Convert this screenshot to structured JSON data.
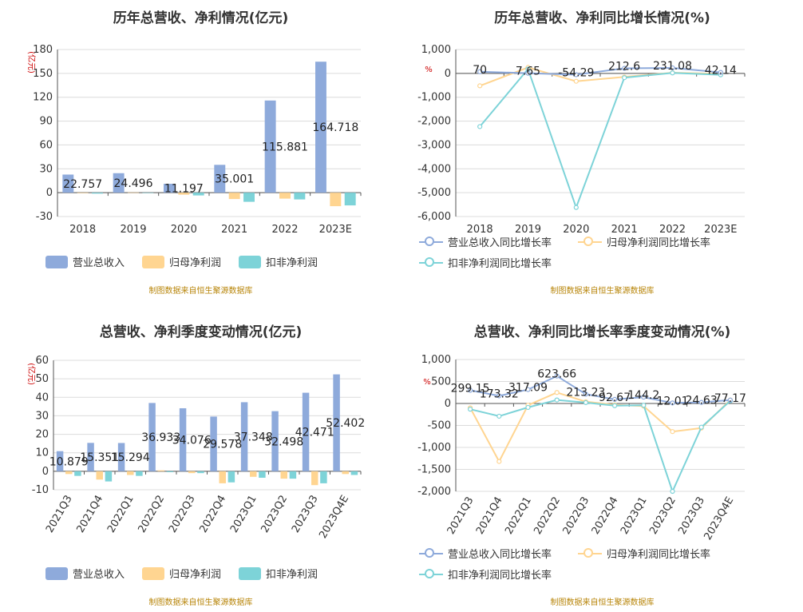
{
  "colors": {
    "rev": "#8eaadb",
    "net": "#ffd591",
    "deduct": "#7dd3d8",
    "axis_unit": "#cc0000",
    "source": "#b8860b"
  },
  "chart_data": [
    {
      "id": "annual_value",
      "type": "bar",
      "title": "历年总营收、净利情况(亿元)",
      "unit_label": "(亿元)",
      "categories": [
        "2018",
        "2019",
        "2020",
        "2021",
        "2022",
        "2023E"
      ],
      "series": [
        {
          "name": "营业总收入",
          "values": [
            22.757,
            24.496,
            11.197,
            35.001,
            115.881,
            164.718
          ],
          "labels": [
            "22.757",
            "24.496",
            "11.197",
            "35.001",
            "115.881",
            "164.718"
          ]
        },
        {
          "name": "归母净利润",
          "values": [
            -0.6,
            0.3,
            -2.5,
            -8.0,
            -7.5,
            -17.0
          ]
        },
        {
          "name": "扣非净利润",
          "values": [
            -1.2,
            -0.3,
            -3.5,
            -11.5,
            -8.5,
            -16.0
          ]
        }
      ],
      "ylim": [
        -30,
        180
      ],
      "yticks": [
        -30,
        0,
        30,
        60,
        90,
        120,
        150,
        180
      ],
      "legend_position": "bottom",
      "source": "制图数据来自恒生聚源数据库"
    },
    {
      "id": "annual_growth",
      "type": "line",
      "title": "历年总营收、净利同比增长情况(%)",
      "unit_label": "%",
      "categories": [
        "2018",
        "2019",
        "2020",
        "2021",
        "2022",
        "2023E"
      ],
      "series": [
        {
          "name": "营业总收入同比增长率",
          "values": [
            70,
            7.65,
            -54.29,
            212.6,
            231.08,
            42.14
          ],
          "labels": [
            "70",
            "7.65",
            "-54.29",
            "212.6",
            "231.08",
            "42.14"
          ]
        },
        {
          "name": "归母净利润同比增长率",
          "values": [
            -520,
            250,
            -330,
            -150,
            30,
            -20
          ]
        },
        {
          "name": "扣非净利润同比增长率",
          "values": [
            -2230,
            180,
            -5620,
            -180,
            20,
            -60
          ]
        }
      ],
      "ylim": [
        -6000,
        1000
      ],
      "yticks": [
        -6000,
        -5000,
        -4000,
        -3000,
        -2000,
        -1000,
        0,
        1000
      ],
      "legend_position": "bottom",
      "source": "制图数据来自恒生聚源数据库"
    },
    {
      "id": "quarter_value",
      "type": "bar",
      "title": "总营收、净利季度变动情况(亿元)",
      "unit_label": "(亿元)",
      "categories": [
        "2021Q3",
        "2021Q4",
        "2022Q1",
        "2022Q2",
        "2022Q3",
        "2022Q4",
        "2023Q1",
        "2023Q2",
        "2023Q3",
        "2023Q4E"
      ],
      "series": [
        {
          "name": "营业总收入",
          "values": [
            10.879,
            15.351,
            15.294,
            36.933,
            34.076,
            29.578,
            37.348,
            32.498,
            42.471,
            52.402
          ],
          "labels": [
            "10.879",
            "15.351",
            "15.294",
            "36.933",
            "34.076",
            "29.578",
            "37.348",
            "32.498",
            "42.471",
            "52.402"
          ]
        },
        {
          "name": "归母净利润",
          "values": [
            -1.5,
            -4.5,
            -2.0,
            0.5,
            -1.0,
            -6.5,
            -3.0,
            -4.0,
            -7.5,
            -1.5
          ]
        },
        {
          "name": "扣非净利润",
          "values": [
            -2.5,
            -5.5,
            -2.5,
            -0.5,
            -1.0,
            -6.0,
            -3.5,
            -4.0,
            -6.5,
            -2.0
          ]
        }
      ],
      "ylim": [
        -10,
        60
      ],
      "yticks": [
        -10,
        0,
        10,
        20,
        30,
        40,
        50,
        60
      ],
      "legend_position": "bottom",
      "source": "制图数据来自恒生聚源数据库"
    },
    {
      "id": "quarter_growth",
      "type": "line",
      "title": "总营收、净利同比增长率季度变动情况(%)",
      "unit_label": "%",
      "categories": [
        "2021Q3",
        "2021Q4",
        "2022Q1",
        "2022Q2",
        "2022Q3",
        "2022Q4",
        "2023Q1",
        "2023Q2",
        "2023Q3",
        "2023Q4E"
      ],
      "series": [
        {
          "name": "营业总收入同比增长率",
          "values": [
            299.15,
            173.32,
            317.09,
            623.66,
            213.23,
            92.67,
            144.2,
            12.01,
            24.63,
            77.17
          ],
          "labels": [
            "299.15",
            "173.32",
            "317.09",
            "623.66",
            "213.23",
            "92.67",
            "144.2",
            "12.01",
            "24.63",
            "77.17"
          ]
        },
        {
          "name": "归母净利润同比增长率",
          "values": [
            -100,
            -1320,
            -40,
            250,
            40,
            -30,
            -60,
            -640,
            -560,
            80
          ]
        },
        {
          "name": "扣非净利润同比增长率",
          "values": [
            -130,
            -290,
            -90,
            80,
            20,
            -50,
            -40,
            -2000,
            -540,
            60
          ]
        }
      ],
      "ylim": [
        -2000,
        1000
      ],
      "yticks": [
        -2000,
        -1500,
        -1000,
        -500,
        0,
        500,
        1000
      ],
      "legend_position": "bottom",
      "source": "制图数据来自恒生聚源数据库"
    }
  ]
}
